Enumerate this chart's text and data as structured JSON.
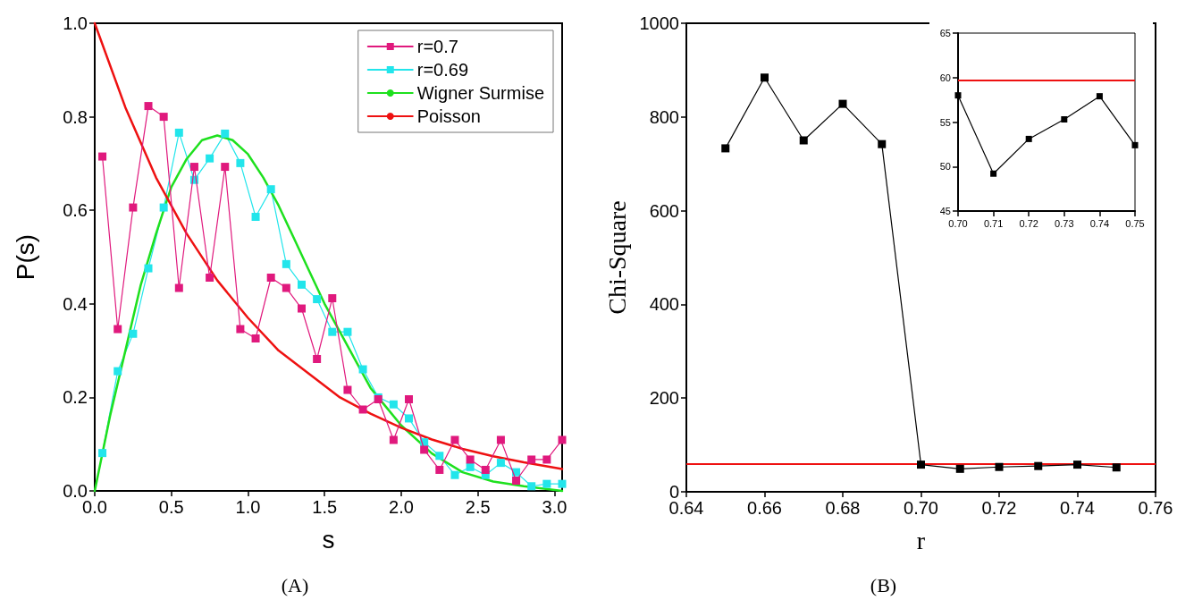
{
  "chart_data": [
    {
      "type": "line",
      "xlabel": "s",
      "ylabel": "P(s)",
      "annotations": [
        "(A)"
      ],
      "xlim": [
        0,
        3.05
      ],
      "ylim": [
        0,
        1
      ],
      "xticks": [
        {
          "value": 0,
          "label": "0.0"
        },
        0.5,
        {
          "value": 1,
          "label": "1.0"
        },
        1.5,
        {
          "value": 2,
          "label": "2.0"
        },
        2.5,
        {
          "value": 3,
          "label": "3.0"
        }
      ],
      "yticks": [
        {
          "value": 0,
          "label": "0.0"
        },
        0.2,
        0.4,
        0.6,
        0.8,
        {
          "value": 1,
          "label": "1.0"
        }
      ],
      "grid": false,
      "legend": "top right",
      "line_style": "solid",
      "series": [
        {
          "name": "r=0.7",
          "color": "#e0197d",
          "marker": "square",
          "x": [
            0.05,
            0.15,
            0.25,
            0.35,
            0.45,
            0.55,
            0.65,
            0.75,
            0.85,
            0.95,
            1.05,
            1.15,
            1.25,
            1.35,
            1.45,
            1.55,
            1.65,
            1.75,
            1.85,
            1.95,
            2.05,
            2.15,
            2.25,
            2.35,
            2.45,
            2.55,
            2.65,
            2.75,
            2.85,
            2.95,
            3.05
          ],
          "values": [
            0.715,
            0.346,
            0.606,
            0.823,
            0.8,
            0.434,
            0.693,
            0.456,
            0.693,
            0.346,
            0.326,
            0.456,
            0.434,
            0.39,
            0.282,
            0.412,
            0.216,
            0.174,
            0.196,
            0.109,
            0.196,
            0.088,
            0.045,
            0.109,
            0.067,
            0.045,
            0.109,
            0.022,
            0.067,
            0.067,
            0.109
          ]
        },
        {
          "name": "r=0.69",
          "color": "#22e5eb",
          "marker": "square",
          "x": [
            0.05,
            0.15,
            0.25,
            0.35,
            0.45,
            0.55,
            0.65,
            0.75,
            0.85,
            0.95,
            1.05,
            1.15,
            1.25,
            1.35,
            1.45,
            1.55,
            1.65,
            1.75,
            1.85,
            1.95,
            2.05,
            2.15,
            2.25,
            2.35,
            2.45,
            2.55,
            2.65,
            2.75,
            2.85,
            2.95,
            3.05
          ],
          "values": [
            0.081,
            0.256,
            0.336,
            0.476,
            0.606,
            0.766,
            0.665,
            0.711,
            0.764,
            0.701,
            0.586,
            0.645,
            0.485,
            0.441,
            0.41,
            0.34,
            0.34,
            0.26,
            0.2,
            0.185,
            0.155,
            0.104,
            0.075,
            0.034,
            0.051,
            0.034,
            0.06,
            0.04,
            0.01,
            0.015,
            0.015
          ]
        },
        {
          "name": "Wigner Surmise",
          "color": "#1ee01e",
          "marker": "none",
          "x": [
            0,
            0.1,
            0.2,
            0.3,
            0.4,
            0.5,
            0.6,
            0.7,
            0.8,
            0.9,
            1.0,
            1.1,
            1.2,
            1.3,
            1.4,
            1.5,
            1.6,
            1.7,
            1.8,
            1.9,
            2.0,
            2.2,
            2.4,
            2.6,
            2.8,
            3.05
          ],
          "values": [
            0,
            0.16,
            0.3,
            0.44,
            0.55,
            0.65,
            0.71,
            0.75,
            0.76,
            0.75,
            0.72,
            0.67,
            0.61,
            0.54,
            0.47,
            0.4,
            0.34,
            0.28,
            0.22,
            0.18,
            0.14,
            0.08,
            0.04,
            0.02,
            0.01,
            0
          ]
        },
        {
          "name": "Poisson",
          "color": "#ee1111",
          "marker": "none",
          "x": [
            0,
            0.2,
            0.4,
            0.6,
            0.8,
            1.0,
            1.2,
            1.4,
            1.6,
            1.8,
            2.0,
            2.2,
            2.4,
            2.6,
            2.8,
            3.05
          ],
          "values": [
            1,
            0.82,
            0.67,
            0.55,
            0.45,
            0.37,
            0.3,
            0.25,
            0.2,
            0.165,
            0.135,
            0.11,
            0.09,
            0.074,
            0.061,
            0.047
          ]
        }
      ]
    },
    {
      "type": "line",
      "xlabel": "r",
      "ylabel": "Chi-Square",
      "annotations": [
        "(B)"
      ],
      "xlim": [
        0.64,
        0.76
      ],
      "ylim": [
        0,
        1000
      ],
      "xticks": [
        0.64,
        0.66,
        0.68,
        {
          "value": 0.7,
          "label": "0.70"
        },
        0.72,
        0.74,
        0.76
      ],
      "yticks": [
        0,
        200,
        400,
        600,
        800,
        1000
      ],
      "grid": false,
      "line_style": "solid",
      "ref_lines": [
        {
          "axis": "y",
          "value": 59.7,
          "color": "#ee1111"
        }
      ],
      "series": [
        {
          "color": "#000000",
          "marker": "square",
          "x": [
            0.65,
            0.66,
            0.67,
            0.68,
            0.69,
            0.7,
            0.71,
            0.72,
            0.73,
            0.74,
            0.75
          ],
          "values": [
            733,
            884,
            750,
            828,
            742,
            58,
            49,
            53,
            55,
            58,
            52
          ]
        }
      ]
    },
    {
      "type": "line",
      "xlim": [
        0.7,
        0.75
      ],
      "ylim": [
        45,
        65
      ],
      "xticks": [
        {
          "value": 0.7,
          "label": "0.70"
        },
        0.71,
        0.72,
        0.73,
        0.74,
        0.75
      ],
      "yticks": [
        45,
        50,
        55,
        60,
        65
      ],
      "grid": false,
      "line_style": "solid",
      "ref_lines": [
        {
          "axis": "y",
          "value": 59.7,
          "color": "#ee1111"
        }
      ],
      "series": [
        {
          "color": "#000000",
          "marker": "square",
          "x": [
            0.7,
            0.71,
            0.72,
            0.73,
            0.74,
            0.75
          ],
          "values": [
            58,
            49.2,
            53.1,
            55.3,
            57.9,
            52.4
          ]
        }
      ]
    }
  ]
}
